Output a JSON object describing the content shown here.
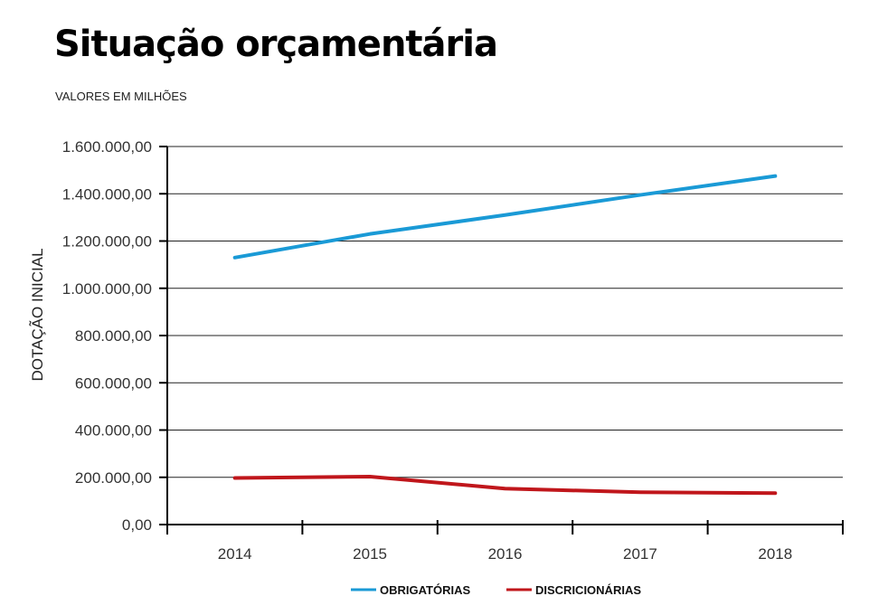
{
  "header": {
    "title": "Situação orçamentária",
    "subtitle": "VALORES EM MILHÕES"
  },
  "chart_data": {
    "type": "line",
    "title": "Situação orçamentária",
    "subtitle": "VALORES EM MILHÕES",
    "xlabel": "",
    "ylabel": "DOTAÇÃO INICIAL",
    "categories": [
      "2014",
      "2015",
      "2016",
      "2017",
      "2018"
    ],
    "ylim": [
      0,
      1600000
    ],
    "yticks": [
      0,
      200000,
      400000,
      600000,
      800000,
      1000000,
      1200000,
      1400000,
      1600000
    ],
    "ytick_labels": [
      "0,00",
      "200.000,00",
      "400.000,00",
      "600.000,00",
      "800.000,00",
      "1.000.000,00",
      "1.200.000,00",
      "1.400.000,00",
      "1.600.000,00"
    ],
    "grid": true,
    "legend_position": "bottom-center",
    "series": [
      {
        "name": "OBRIGATÓRIAS",
        "color": "#1a9ad6",
        "values": [
          1130000,
          1230000,
          1310000,
          1395000,
          1475000
        ]
      },
      {
        "name": "DISCRICIONÁRIAS",
        "color": "#c0161b",
        "values": [
          197000,
          203000,
          152000,
          137000,
          133000
        ]
      }
    ]
  }
}
